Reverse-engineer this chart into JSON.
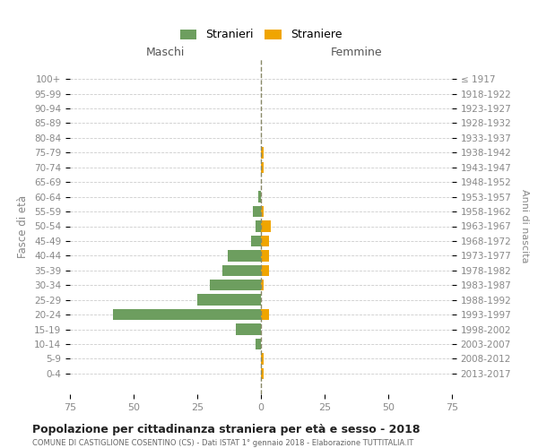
{
  "age_groups": [
    "0-4",
    "5-9",
    "10-14",
    "15-19",
    "20-24",
    "25-29",
    "30-34",
    "35-39",
    "40-44",
    "45-49",
    "50-54",
    "55-59",
    "60-64",
    "65-69",
    "70-74",
    "75-79",
    "80-84",
    "85-89",
    "90-94",
    "95-99",
    "100+"
  ],
  "birth_years": [
    "2013-2017",
    "2008-2012",
    "2003-2007",
    "1998-2002",
    "1993-1997",
    "1988-1992",
    "1983-1987",
    "1978-1982",
    "1973-1977",
    "1968-1972",
    "1963-1967",
    "1958-1962",
    "1953-1957",
    "1948-1952",
    "1943-1947",
    "1938-1942",
    "1933-1937",
    "1928-1932",
    "1923-1927",
    "1918-1922",
    "≤ 1917"
  ],
  "males": [
    0,
    0,
    2,
    10,
    58,
    25,
    20,
    15,
    13,
    4,
    2,
    3,
    1,
    0,
    0,
    0,
    0,
    0,
    0,
    0,
    0
  ],
  "females": [
    1,
    1,
    0,
    0,
    3,
    0,
    1,
    3,
    3,
    3,
    4,
    1,
    0,
    0,
    1,
    1,
    0,
    0,
    0,
    0,
    0
  ],
  "male_color": "#6d9e5f",
  "female_color": "#f0a500",
  "male_label": "Stranieri",
  "female_label": "Straniere",
  "title": "Popolazione per cittadinanza straniera per età e sesso - 2018",
  "subtitle": "COMUNE DI CASTIGLIONE COSENTINO (CS) - Dati ISTAT 1° gennaio 2018 - Elaborazione TUTTITALIA.IT",
  "xlabel_left": "Maschi",
  "xlabel_right": "Femmine",
  "ylabel_left": "Fasce di età",
  "ylabel_right": "Anni di nascita",
  "xlim": 75,
  "bg_color": "#ffffff",
  "grid_color": "#cccccc",
  "tick_color": "#888888"
}
